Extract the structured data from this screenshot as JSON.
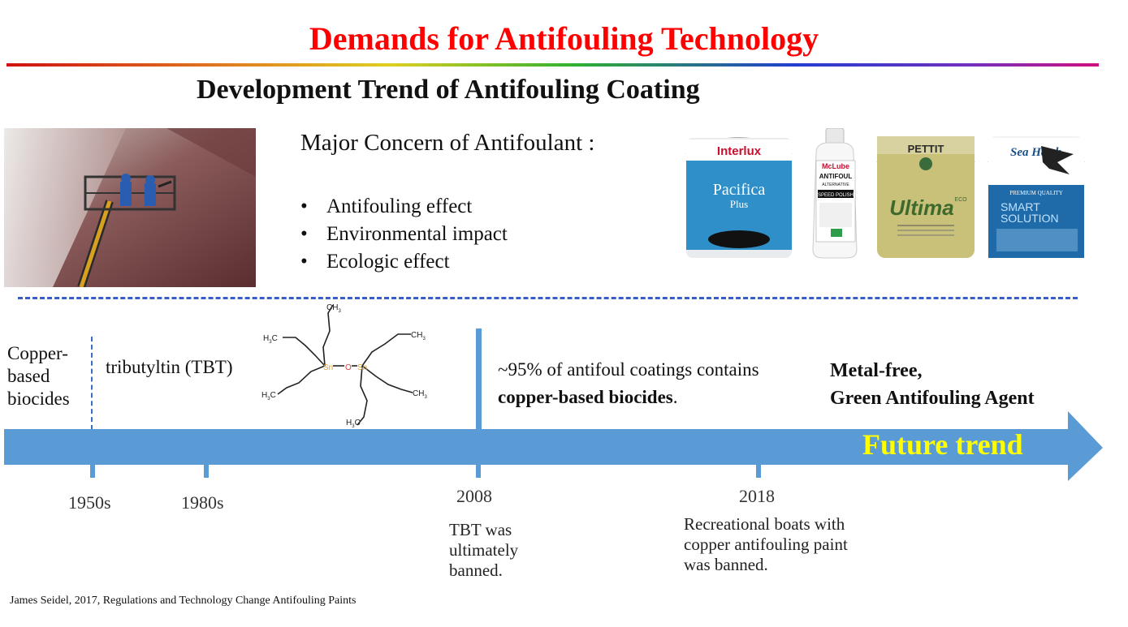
{
  "slide": {
    "title": "Demands for Antifouling Technology",
    "subtitle": "Development Trend of Antifouling Coating"
  },
  "concerns": {
    "heading": "Major Concern of Antifoulant :",
    "bullet_char": "•",
    "items": [
      "Antifouling effect",
      "Environmental impact",
      "Ecologic effect"
    ]
  },
  "products": [
    {
      "brand": "Interlux",
      "name": "Pacifica",
      "sub": "Plus",
      "color": "#2f8fc9"
    },
    {
      "brand": "McLube",
      "name": "ANTIFOUL",
      "sub": "ALTERNATIVE",
      "extra": "SPEED POLISH",
      "color": "#ffffff"
    },
    {
      "brand": "PETTIT",
      "name": "Ultima",
      "sub": "ECO",
      "color": "#c9c07a"
    },
    {
      "brand": "Sea Hawk",
      "name": "SMART",
      "sub": "SOLUTION",
      "extra": "PREMIUM QUALITY",
      "color": "#1f6aa8"
    }
  ],
  "molecule": {
    "labels": {
      "ch3": "CH",
      "h3c": "H",
      "c": "C",
      "sub3": "3",
      "sn": "Sn",
      "o": "O"
    }
  },
  "timeline": {
    "copper_label": "Copper-based biocides",
    "copper_lines": [
      "Copper-",
      "based",
      "biocides"
    ],
    "tbt_label": "tributyltin (TBT)",
    "stat_line1": "~95% of antifoul coatings contains",
    "stat_bold": "copper-based biocides",
    "stat_end": ".",
    "future_goal_lines": [
      "Metal-free,",
      "Green Antifouling Agent"
    ],
    "future_label": "Future trend",
    "years": [
      "1950s",
      "1980s",
      "2008",
      "2018"
    ],
    "note_2008": [
      "TBT was",
      "ultimately",
      "banned."
    ],
    "note_2018": [
      "Recreational boats with",
      "copper antifouling paint",
      "was banned."
    ]
  },
  "citation": "James Seidel, 2017, Regulations and Technology Change Antifouling Paints",
  "colors": {
    "title": "#ff0000",
    "arrow": "#5b9bd5",
    "future_label": "#ffff00",
    "dash": "#3a5ec8",
    "sn": "#e0a030"
  }
}
